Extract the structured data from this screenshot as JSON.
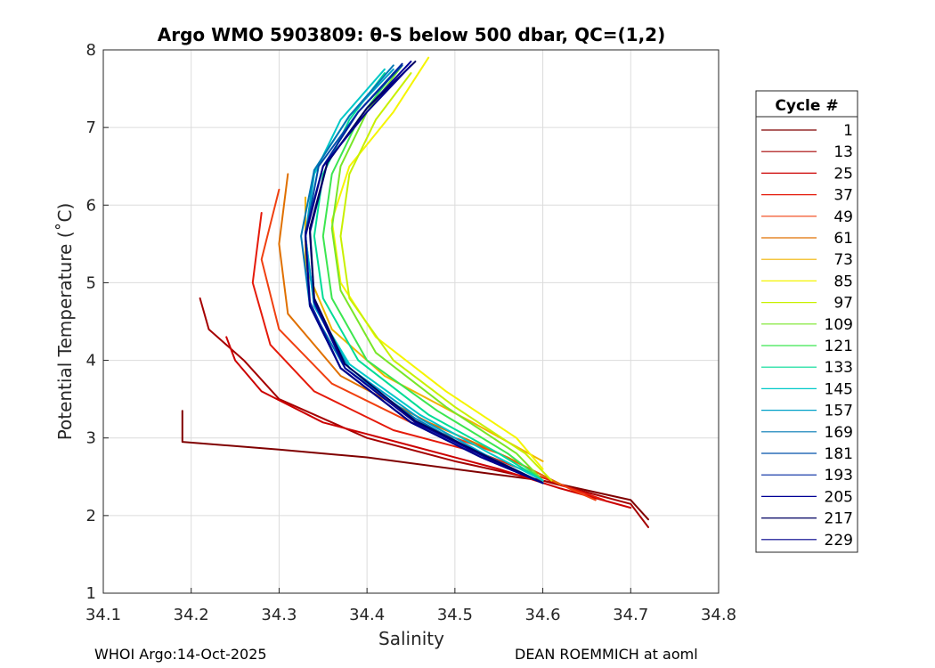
{
  "chart_data": {
    "type": "line",
    "title": "Argo WMO 5903809: θ-S below 500 dbar,  QC=(1,2)",
    "xlabel": "Salinity",
    "ylabel": "Potential Temperature (˚C)",
    "xlim": [
      34.1,
      34.8
    ],
    "ylim": [
      1,
      8
    ],
    "xticks": [
      "34.1",
      "34.2",
      "34.3",
      "34.4",
      "34.5",
      "34.6",
      "34.7",
      "34.8"
    ],
    "yticks": [
      "1",
      "2",
      "3",
      "4",
      "5",
      "6",
      "7",
      "8"
    ],
    "grid": true,
    "legend": {
      "title": "Cycle #",
      "placement": "right",
      "entries": [
        {
          "label": "1",
          "color": "#800000"
        },
        {
          "label": "13",
          "color": "#A50000"
        },
        {
          "label": "25",
          "color": "#CC0000"
        },
        {
          "label": "37",
          "color": "#E51A0A"
        },
        {
          "label": "49",
          "color": "#F04010"
        },
        {
          "label": "61",
          "color": "#E07000"
        },
        {
          "label": "73",
          "color": "#F0B400"
        },
        {
          "label": "85",
          "color": "#F5F500"
        },
        {
          "label": "97",
          "color": "#C8F000"
        },
        {
          "label": "109",
          "color": "#78E628"
        },
        {
          "label": "121",
          "color": "#3CE650"
        },
        {
          "label": "133",
          "color": "#00DC96"
        },
        {
          "label": "145",
          "color": "#00C8C8"
        },
        {
          "label": "157",
          "color": "#00A0C8"
        },
        {
          "label": "169",
          "color": "#0078B4"
        },
        {
          "label": "181",
          "color": "#0050AA"
        },
        {
          "label": "193",
          "color": "#0028A0"
        },
        {
          "label": "205",
          "color": "#000096"
        },
        {
          "label": "217",
          "color": "#000060"
        },
        {
          "label": "229",
          "color": "#00008C"
        }
      ]
    },
    "series": [
      {
        "name": "1",
        "color": "#800000",
        "points": [
          [
            34.19,
            3.35
          ],
          [
            34.19,
            2.95
          ],
          [
            34.3,
            2.85
          ],
          [
            34.4,
            2.75
          ],
          [
            34.5,
            2.6
          ],
          [
            34.6,
            2.45
          ],
          [
            34.7,
            2.2
          ],
          [
            34.72,
            1.95
          ]
        ]
      },
      {
        "name": "13",
        "color": "#A50000",
        "points": [
          [
            34.21,
            4.8
          ],
          [
            34.22,
            4.4
          ],
          [
            34.26,
            4.0
          ],
          [
            34.3,
            3.5
          ],
          [
            34.4,
            3.0
          ],
          [
            34.5,
            2.7
          ],
          [
            34.6,
            2.45
          ],
          [
            34.7,
            2.15
          ],
          [
            34.72,
            1.85
          ]
        ]
      },
      {
        "name": "25",
        "color": "#CC0000",
        "points": [
          [
            34.24,
            4.3
          ],
          [
            34.25,
            4.0
          ],
          [
            34.28,
            3.6
          ],
          [
            34.35,
            3.2
          ],
          [
            34.45,
            2.9
          ],
          [
            34.55,
            2.6
          ],
          [
            34.62,
            2.35
          ],
          [
            34.7,
            2.1
          ]
        ]
      },
      {
        "name": "37",
        "color": "#E51A0A",
        "points": [
          [
            34.28,
            5.9
          ],
          [
            34.27,
            5.0
          ],
          [
            34.29,
            4.2
          ],
          [
            34.34,
            3.6
          ],
          [
            34.43,
            3.1
          ],
          [
            34.53,
            2.8
          ],
          [
            34.62,
            2.4
          ],
          [
            34.67,
            2.2
          ]
        ]
      },
      {
        "name": "49",
        "color": "#F04010",
        "points": [
          [
            34.3,
            6.2
          ],
          [
            34.28,
            5.3
          ],
          [
            34.3,
            4.4
          ],
          [
            34.36,
            3.7
          ],
          [
            34.45,
            3.2
          ],
          [
            34.55,
            2.8
          ],
          [
            34.63,
            2.35
          ],
          [
            34.66,
            2.2
          ]
        ]
      },
      {
        "name": "61",
        "color": "#E07000",
        "points": [
          [
            34.31,
            6.4
          ],
          [
            34.3,
            5.5
          ],
          [
            34.31,
            4.6
          ],
          [
            34.37,
            3.8
          ],
          [
            34.47,
            3.2
          ],
          [
            34.56,
            2.75
          ],
          [
            34.62,
            2.4
          ]
        ]
      },
      {
        "name": "73",
        "color": "#F0B400",
        "points": [
          [
            34.33,
            6.1
          ],
          [
            34.33,
            5.2
          ],
          [
            34.36,
            4.4
          ],
          [
            34.42,
            3.8
          ],
          [
            34.52,
            3.2
          ],
          [
            34.6,
            2.7
          ]
        ]
      },
      {
        "name": "85",
        "color": "#F5F500",
        "points": [
          [
            34.47,
            7.9
          ],
          [
            34.43,
            7.2
          ],
          [
            34.38,
            6.5
          ],
          [
            34.36,
            5.8
          ],
          [
            34.37,
            5.0
          ],
          [
            34.41,
            4.3
          ],
          [
            34.49,
            3.6
          ],
          [
            34.57,
            3.0
          ],
          [
            34.6,
            2.6
          ]
        ]
      },
      {
        "name": "97",
        "color": "#C8F000",
        "points": [
          [
            34.45,
            7.7
          ],
          [
            34.41,
            7.1
          ],
          [
            34.38,
            6.4
          ],
          [
            34.37,
            5.6
          ],
          [
            34.38,
            4.8
          ],
          [
            34.43,
            4.0
          ],
          [
            34.5,
            3.4
          ],
          [
            34.58,
            2.8
          ],
          [
            34.61,
            2.45
          ]
        ]
      },
      {
        "name": "109",
        "color": "#78E628",
        "points": [
          [
            34.44,
            7.8
          ],
          [
            34.4,
            7.2
          ],
          [
            34.37,
            6.5
          ],
          [
            34.36,
            5.7
          ],
          [
            34.37,
            4.9
          ],
          [
            34.41,
            4.1
          ],
          [
            34.49,
            3.4
          ],
          [
            34.57,
            2.8
          ],
          [
            34.6,
            2.45
          ]
        ]
      },
      {
        "name": "121",
        "color": "#3CE650",
        "points": [
          [
            34.43,
            7.7
          ],
          [
            34.39,
            7.1
          ],
          [
            34.36,
            6.4
          ],
          [
            34.35,
            5.6
          ],
          [
            34.36,
            4.8
          ],
          [
            34.4,
            4.0
          ],
          [
            34.48,
            3.35
          ],
          [
            34.56,
            2.8
          ],
          [
            34.6,
            2.45
          ]
        ]
      },
      {
        "name": "133",
        "color": "#00DC96",
        "points": [
          [
            34.42,
            7.7
          ],
          [
            34.38,
            7.1
          ],
          [
            34.35,
            6.4
          ],
          [
            34.34,
            5.6
          ],
          [
            34.35,
            4.8
          ],
          [
            34.39,
            4.0
          ],
          [
            34.47,
            3.3
          ],
          [
            34.55,
            2.8
          ],
          [
            34.6,
            2.45
          ]
        ]
      },
      {
        "name": "145",
        "color": "#00C8C8",
        "points": [
          [
            34.42,
            7.75
          ],
          [
            34.37,
            7.1
          ],
          [
            34.34,
            6.4
          ],
          [
            34.33,
            5.6
          ],
          [
            34.34,
            4.7
          ],
          [
            34.38,
            3.95
          ],
          [
            34.46,
            3.3
          ],
          [
            34.54,
            2.8
          ],
          [
            34.6,
            2.45
          ]
        ]
      },
      {
        "name": "157",
        "color": "#00A0C8",
        "points": [
          [
            34.43,
            7.75
          ],
          [
            34.38,
            7.15
          ],
          [
            34.34,
            6.45
          ],
          [
            34.33,
            5.6
          ],
          [
            34.34,
            4.7
          ],
          [
            34.38,
            3.9
          ],
          [
            34.46,
            3.25
          ],
          [
            34.54,
            2.75
          ],
          [
            34.6,
            2.42
          ]
        ]
      },
      {
        "name": "169",
        "color": "#0078B4",
        "points": [
          [
            34.43,
            7.8
          ],
          [
            34.38,
            7.15
          ],
          [
            34.34,
            6.45
          ],
          [
            34.325,
            5.6
          ],
          [
            34.335,
            4.7
          ],
          [
            34.375,
            3.9
          ],
          [
            34.455,
            3.25
          ],
          [
            34.535,
            2.75
          ],
          [
            34.6,
            2.42
          ]
        ]
      },
      {
        "name": "181",
        "color": "#0050AA",
        "points": [
          [
            34.44,
            7.8
          ],
          [
            34.39,
            7.2
          ],
          [
            34.345,
            6.5
          ],
          [
            34.33,
            5.6
          ],
          [
            34.335,
            4.7
          ],
          [
            34.37,
            3.9
          ],
          [
            34.45,
            3.2
          ],
          [
            34.53,
            2.75
          ],
          [
            34.6,
            2.42
          ]
        ]
      },
      {
        "name": "193",
        "color": "#0028A0",
        "points": [
          [
            34.44,
            7.82
          ],
          [
            34.39,
            7.2
          ],
          [
            34.35,
            6.5
          ],
          [
            34.33,
            5.65
          ],
          [
            34.335,
            4.75
          ],
          [
            34.37,
            3.9
          ],
          [
            34.45,
            3.2
          ],
          [
            34.53,
            2.75
          ],
          [
            34.6,
            2.42
          ]
        ]
      },
      {
        "name": "205",
        "color": "#000096",
        "points": [
          [
            34.45,
            7.85
          ],
          [
            34.4,
            7.25
          ],
          [
            34.355,
            6.55
          ],
          [
            34.335,
            5.65
          ],
          [
            34.34,
            4.75
          ],
          [
            34.375,
            3.9
          ],
          [
            34.455,
            3.2
          ],
          [
            34.535,
            2.75
          ],
          [
            34.6,
            2.42
          ]
        ]
      },
      {
        "name": "217",
        "color": "#000060",
        "points": [
          [
            34.455,
            7.85
          ],
          [
            34.4,
            7.25
          ],
          [
            34.355,
            6.55
          ],
          [
            34.335,
            5.7
          ],
          [
            34.34,
            4.8
          ],
          [
            34.375,
            3.95
          ],
          [
            34.455,
            3.22
          ],
          [
            34.535,
            2.77
          ],
          [
            34.6,
            2.42
          ]
        ]
      },
      {
        "name": "229",
        "color": "#00008C",
        "points": [
          [
            34.45,
            7.8
          ],
          [
            34.4,
            7.2
          ],
          [
            34.35,
            6.5
          ],
          [
            34.33,
            5.6
          ],
          [
            34.335,
            4.7
          ],
          [
            34.37,
            3.9
          ],
          [
            34.45,
            3.2
          ],
          [
            34.53,
            2.75
          ],
          [
            34.6,
            2.42
          ]
        ]
      }
    ]
  },
  "footer": {
    "left": "WHOI Argo:14-Oct-2025",
    "right": "DEAN ROEMMICH at aoml"
  }
}
